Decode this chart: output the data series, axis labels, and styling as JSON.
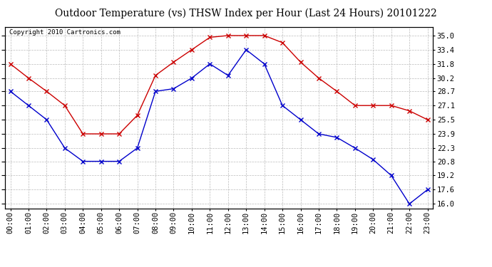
{
  "title": "Outdoor Temperature (vs) THSW Index per Hour (Last 24 Hours) 20101222",
  "copyright": "Copyright 2010 Cartronics.com",
  "hours": [
    "00:00",
    "01:00",
    "02:00",
    "03:00",
    "04:00",
    "05:00",
    "06:00",
    "07:00",
    "08:00",
    "09:00",
    "10:00",
    "11:00",
    "12:00",
    "13:00",
    "14:00",
    "15:00",
    "16:00",
    "17:00",
    "18:00",
    "19:00",
    "20:00",
    "21:00",
    "22:00",
    "23:00"
  ],
  "temp_blue": [
    28.7,
    27.1,
    25.5,
    22.3,
    20.8,
    20.8,
    20.8,
    22.3,
    28.7,
    29.0,
    30.2,
    31.8,
    30.5,
    33.4,
    31.8,
    27.1,
    25.5,
    23.9,
    23.5,
    22.3,
    21.0,
    19.2,
    16.0,
    17.6
  ],
  "thsw_red": [
    31.8,
    30.2,
    28.7,
    27.1,
    23.9,
    23.9,
    23.9,
    26.0,
    30.5,
    32.0,
    33.4,
    34.8,
    35.0,
    35.0,
    35.0,
    34.2,
    32.0,
    30.2,
    28.7,
    27.1,
    27.1,
    27.1,
    26.5,
    25.5
  ],
  "ylim": [
    15.5,
    36.0
  ],
  "yticks": [
    16.0,
    17.6,
    19.2,
    20.8,
    22.3,
    23.9,
    25.5,
    27.1,
    28.7,
    30.2,
    31.8,
    33.4,
    35.0
  ],
  "blue_color": "#0000cc",
  "red_color": "#cc0000",
  "bg_color": "#ffffff",
  "grid_color": "#aaaaaa",
  "title_fontsize": 10,
  "copyright_fontsize": 6.5,
  "tick_fontsize": 7.5,
  "marker_size": 4,
  "linewidth": 1.0
}
